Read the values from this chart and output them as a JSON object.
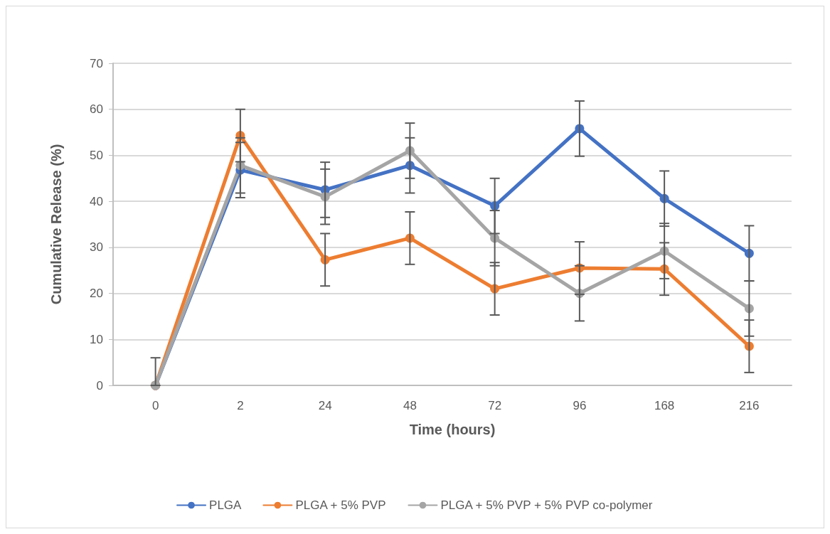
{
  "chart_data": {
    "type": "line",
    "xlabel": "Time (hours)",
    "ylabel": "Cumulative Release (%)",
    "categories": [
      "0",
      "2",
      "24",
      "48",
      "72",
      "96",
      "168",
      "216"
    ],
    "series": [
      {
        "name": "PLGA",
        "color": "#4472c4",
        "values": [
          0,
          46.8,
          42.5,
          47.8,
          39,
          55.8,
          40.6,
          28.7
        ],
        "errors": [
          [
            0,
            6
          ],
          6,
          6,
          6,
          6,
          6,
          6,
          6
        ]
      },
      {
        "name": "PLGA + 5% PVP",
        "color": "#ed7d31",
        "values": [
          0,
          54.3,
          27.3,
          32,
          21,
          25.5,
          25.3,
          8.5
        ],
        "errors": [
          null,
          5.7,
          5.7,
          5.7,
          5.7,
          5.7,
          5.7,
          5.7
        ]
      },
      {
        "name": "PLGA + 5% PVP + 5% PVP co-polymer",
        "color": "#a5a5a5",
        "values": [
          0,
          47.8,
          41,
          51,
          32,
          20,
          29.2,
          16.7
        ],
        "errors": [
          null,
          6,
          6,
          6,
          6,
          6,
          6,
          6
        ]
      }
    ],
    "ylim": [
      0,
      70
    ],
    "yticks": [
      0,
      10,
      20,
      30,
      40,
      50,
      60,
      70
    ],
    "grid": "y",
    "legend": "bottom",
    "marker": "circle",
    "line_style": "solid"
  }
}
